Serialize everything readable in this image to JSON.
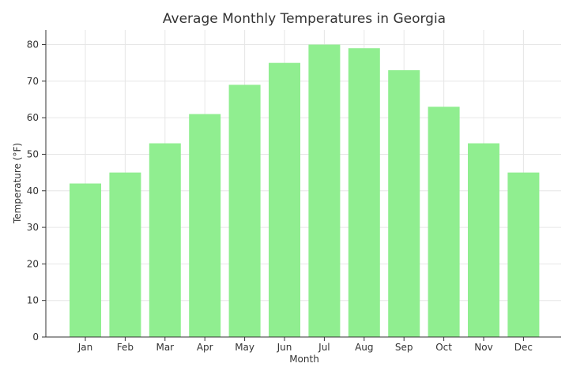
{
  "chart_data": {
    "type": "bar",
    "title": "Average Monthly Temperatures in Georgia",
    "xlabel": "Month",
    "ylabel": "Temperature (°F)",
    "categories": [
      "Jan",
      "Feb",
      "Mar",
      "Apr",
      "May",
      "Jun",
      "Jul",
      "Aug",
      "Sep",
      "Oct",
      "Nov",
      "Dec"
    ],
    "values": [
      42,
      45,
      53,
      61,
      69,
      75,
      80,
      79,
      73,
      63,
      53,
      45
    ],
    "ylim": [
      0,
      84
    ],
    "yticks": [
      0,
      10,
      20,
      30,
      40,
      50,
      60,
      70,
      80
    ],
    "grid": true,
    "colors": {
      "bar": "#90ee90",
      "grid": "#e6e6e6",
      "axis": "#333333",
      "text": "#333333"
    }
  }
}
